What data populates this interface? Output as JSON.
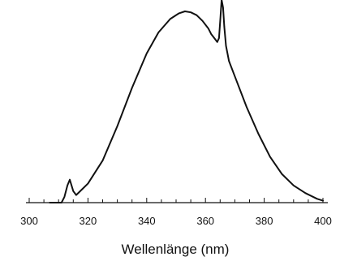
{
  "chart_data": {
    "type": "line",
    "title": "",
    "xlabel": "Wellenlänge (nm)",
    "ylabel": "",
    "xlim": [
      300,
      400
    ],
    "ylim": [
      0,
      1
    ],
    "x_ticks": [
      300,
      320,
      340,
      360,
      380,
      400
    ],
    "x_tick_labels": [
      "300",
      "320",
      "340",
      "360",
      "380",
      "400"
    ],
    "y_ticks_shown": false,
    "grid": false,
    "legend": "none",
    "series": [
      {
        "color": "#111111",
        "x": [
          307,
          311,
          312,
          313,
          313.8,
          315,
          316,
          318,
          320,
          325,
          330,
          335,
          340,
          344,
          348,
          351,
          353,
          355,
          357,
          359,
          361,
          362,
          363,
          364,
          364.6,
          365.1,
          365.5,
          366,
          366.4,
          367,
          368,
          370,
          374,
          378,
          382,
          386,
          390,
          394,
          398,
          400
        ],
        "y": [
          0.0,
          0.0,
          0.03,
          0.09,
          0.12,
          0.06,
          0.04,
          0.07,
          0.1,
          0.22,
          0.4,
          0.6,
          0.78,
          0.89,
          0.96,
          0.99,
          1.0,
          0.995,
          0.98,
          0.95,
          0.91,
          0.88,
          0.86,
          0.84,
          0.86,
          0.97,
          1.06,
          1.02,
          0.92,
          0.82,
          0.74,
          0.66,
          0.5,
          0.36,
          0.24,
          0.15,
          0.09,
          0.05,
          0.02,
          0.01
        ]
      }
    ]
  }
}
